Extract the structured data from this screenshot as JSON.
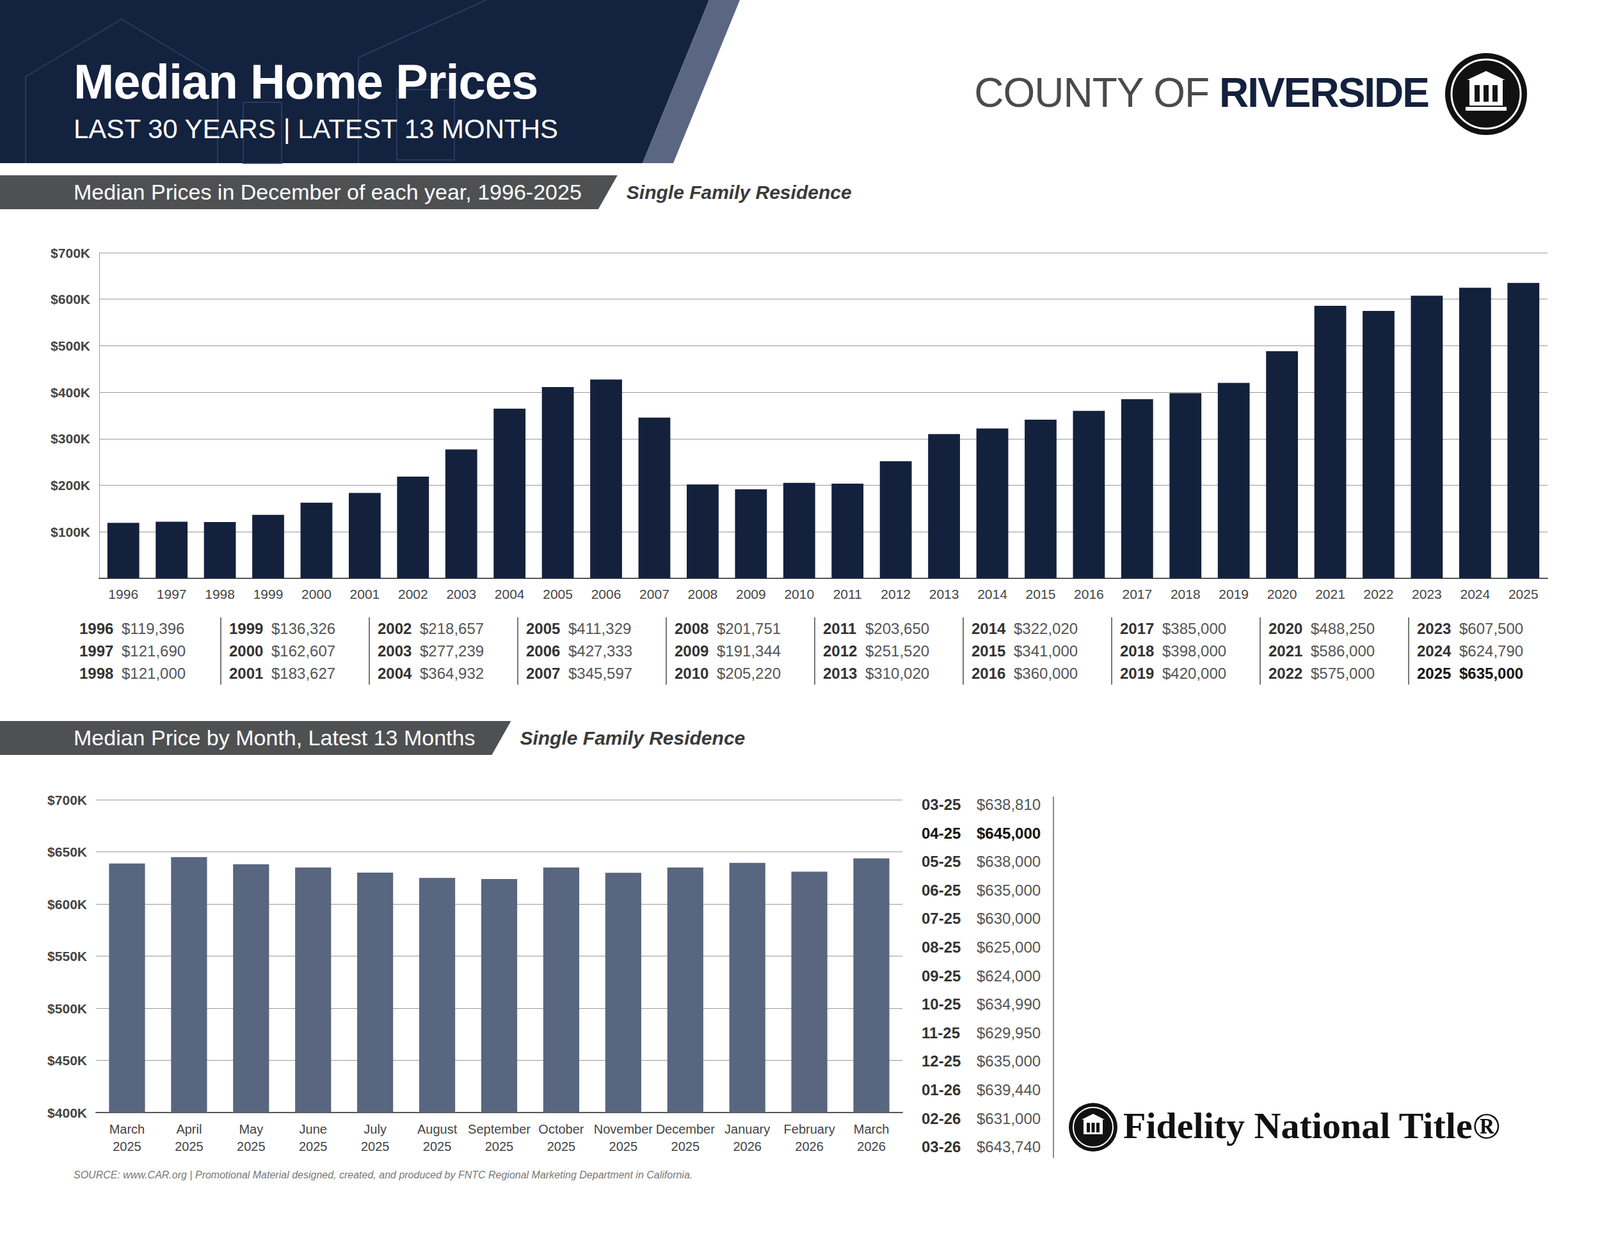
{
  "header": {
    "title": "Median Home Prices",
    "subtitle": "LAST 30 YEARS | LATEST 13 MONTHS",
    "brand_prefix": "COUNTY OF",
    "brand_name": "RIVERSIDE"
  },
  "chart_data": [
    {
      "type": "bar",
      "title": "Median Prices in December of each year, 1996-2025",
      "subtitle": "Single Family Residence",
      "categories": [
        "1996",
        "1997",
        "1998",
        "1999",
        "2000",
        "2001",
        "2002",
        "2003",
        "2004",
        "2005",
        "2006",
        "2007",
        "2008",
        "2009",
        "2010",
        "2011",
        "2012",
        "2013",
        "2014",
        "2015",
        "2016",
        "2017",
        "2018",
        "2019",
        "2020",
        "2021",
        "2022",
        "2023",
        "2024",
        "2025"
      ],
      "values": [
        119396,
        121690,
        121000,
        136326,
        162607,
        183627,
        218657,
        277239,
        364932,
        411329,
        427333,
        345597,
        201751,
        191344,
        205220,
        203650,
        251520,
        310020,
        322020,
        341000,
        360000,
        385000,
        398000,
        420000,
        488250,
        586000,
        575000,
        607500,
        624790,
        635000
      ],
      "value_labels": [
        "$119,396",
        "$121,690",
        "$121,000",
        "$136,326",
        "$162,607",
        "$183,627",
        "$218,657",
        "$277,239",
        "$364,932",
        "$411,329",
        "$427,333",
        "$345,597",
        "$201,751",
        "$191,344",
        "$205,220",
        "$203,650",
        "$251,520",
        "$310,020",
        "$322,020",
        "$341,000",
        "$360,000",
        "$385,000",
        "$398,000",
        "$420,000",
        "$488,250",
        "$586,000",
        "$575,000",
        "$607,500",
        "$624,790",
        "$635,000"
      ],
      "color": "#14213d",
      "ylim": [
        0,
        700000
      ],
      "yticks": [
        {
          "value": 100000,
          "label": "$100K"
        },
        {
          "value": 200000,
          "label": "$200K"
        },
        {
          "value": 300000,
          "label": "$300K"
        },
        {
          "value": 400000,
          "label": "$400K"
        },
        {
          "value": 500000,
          "label": "$500K"
        },
        {
          "value": 600000,
          "label": "$600K"
        },
        {
          "value": 700000,
          "label": "$700K"
        }
      ],
      "grid": true
    },
    {
      "type": "bar",
      "title": "Median Price by Month, Latest 13 Months",
      "subtitle": "Single Family Residence",
      "categories": [
        "March 2025",
        "April 2025",
        "May 2025",
        "June 2025",
        "July 2025",
        "August 2025",
        "September 2025",
        "October 2025",
        "November 2025",
        "December 2025",
        "January 2026",
        "February 2026",
        "March 2026"
      ],
      "short_labels": [
        "03-25",
        "04-25",
        "05-25",
        "06-25",
        "07-25",
        "08-25",
        "09-25",
        "10-25",
        "11-25",
        "12-25",
        "01-26",
        "02-26",
        "03-26"
      ],
      "values": [
        638810,
        645000,
        638000,
        635000,
        630000,
        625000,
        624000,
        634990,
        629950,
        635000,
        639440,
        631000,
        643740
      ],
      "value_labels": [
        "$638,810",
        "$645,000",
        "$638,000",
        "$635,000",
        "$630,000",
        "$625,000",
        "$624,000",
        "$634,990",
        "$629,950",
        "$635,000",
        "$639,440",
        "$631,000",
        "$643,740"
      ],
      "color": "#58667f",
      "ylim": [
        400000,
        700000
      ],
      "yticks": [
        {
          "value": 400000,
          "label": "$400K"
        },
        {
          "value": 450000,
          "label": "$450K"
        },
        {
          "value": 500000,
          "label": "$500K"
        },
        {
          "value": 550000,
          "label": "$550K"
        },
        {
          "value": 600000,
          "label": "$600K"
        },
        {
          "value": 650000,
          "label": "$650K"
        },
        {
          "value": 700000,
          "label": "$700K"
        }
      ],
      "grid": true
    }
  ],
  "footer": {
    "brand": "Fidelity National Title®",
    "source": "SOURCE: www.CAR.org | Promotional Material designed, created, and produced by FNTC Regional Marketing Department in California."
  }
}
